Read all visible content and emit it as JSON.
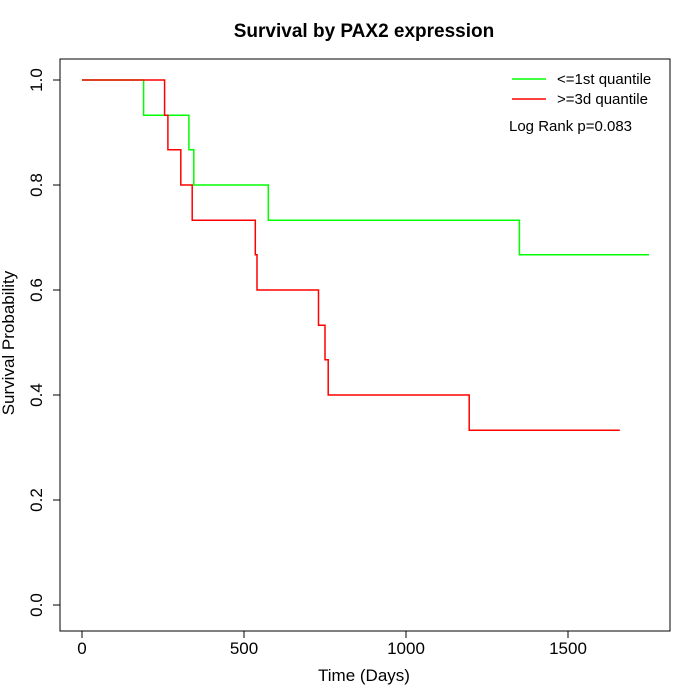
{
  "chart_data": {
    "type": "line",
    "title": "Survival by PAX2 expression",
    "xlabel": "Time (Days)",
    "ylabel": "Survival Probability",
    "xlim": [
      0,
      1750
    ],
    "ylim": [
      0,
      1
    ],
    "x_ticks": [
      0,
      500,
      1000,
      1500
    ],
    "y_ticks": [
      0.0,
      0.2,
      0.4,
      0.6,
      0.8,
      1.0
    ],
    "x_tick_labels": [
      "0",
      "500",
      "1000",
      "1500"
    ],
    "y_tick_labels": [
      "0.0",
      "0.2",
      "0.4",
      "0.6",
      "0.8",
      "1.0"
    ],
    "grid": false,
    "legend_position": "top-right",
    "annotation": "Log Rank p=0.083",
    "series": [
      {
        "name": "<=1st quantile",
        "color": "#00ff00",
        "step": true,
        "x": [
          0,
          190,
          330,
          345,
          575,
          1350,
          1750
        ],
        "y": [
          1.0,
          0.933,
          0.867,
          0.8,
          0.733,
          0.667,
          0.667
        ]
      },
      {
        "name": ">=3d quantile",
        "color": "#ff0000",
        "step": true,
        "x": [
          0,
          255,
          265,
          305,
          340,
          535,
          540,
          730,
          750,
          760,
          1195,
          1660
        ],
        "y": [
          1.0,
          0.933,
          0.867,
          0.8,
          0.733,
          0.667,
          0.6,
          0.533,
          0.467,
          0.4,
          0.333,
          0.333
        ]
      }
    ]
  }
}
